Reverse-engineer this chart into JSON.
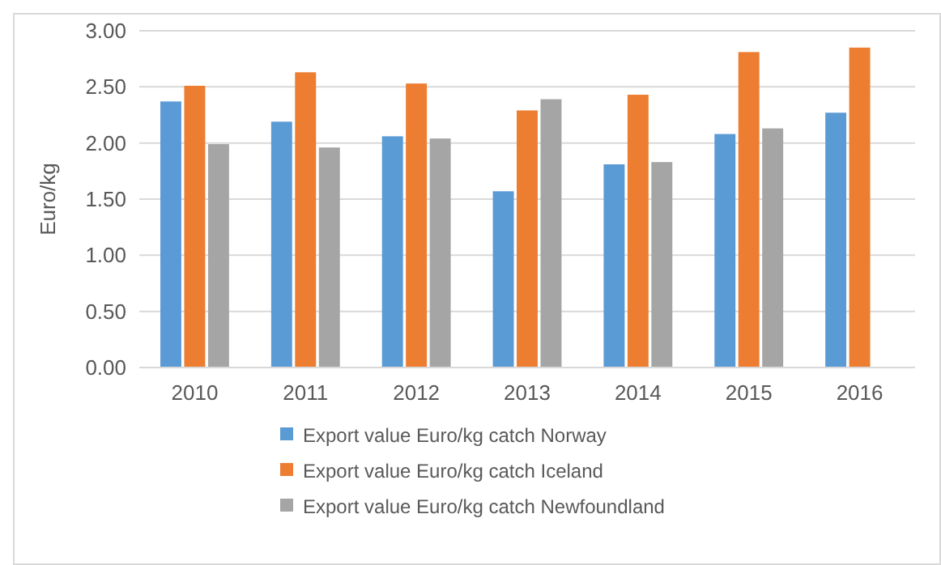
{
  "chart_data": {
    "type": "bar",
    "ylabel": "Euro/kg",
    "categories": [
      "2010",
      "2011",
      "2012",
      "2013",
      "2014",
      "2015",
      "2016"
    ],
    "series": [
      {
        "name": "Export value Euro/kg catch Norway",
        "color": "#5b9bd5",
        "values": [
          2.37,
          2.19,
          2.06,
          1.57,
          1.81,
          2.08,
          2.27
        ]
      },
      {
        "name": "Export value Euro/kg catch Iceland",
        "color": "#ed7d31",
        "values": [
          2.51,
          2.63,
          2.53,
          2.29,
          2.43,
          2.81,
          2.85
        ]
      },
      {
        "name": "Export value Euro/kg catch Newfoundland",
        "color": "#a5a5a5",
        "values": [
          1.99,
          1.96,
          2.04,
          2.39,
          1.83,
          2.13,
          null
        ]
      }
    ],
    "ylim": [
      0,
      3
    ],
    "yticks": [
      {
        "value": 0,
        "label": "0.00"
      },
      {
        "value": 0.5,
        "label": "0.50"
      },
      {
        "value": 1,
        "label": "1.00"
      },
      {
        "value": 1.5,
        "label": "1.50"
      },
      {
        "value": 2,
        "label": "2.00"
      },
      {
        "value": 2.5,
        "label": "2.50"
      },
      {
        "value": 3,
        "label": "3.00"
      }
    ],
    "grid": "y",
    "legend": "bottom"
  }
}
